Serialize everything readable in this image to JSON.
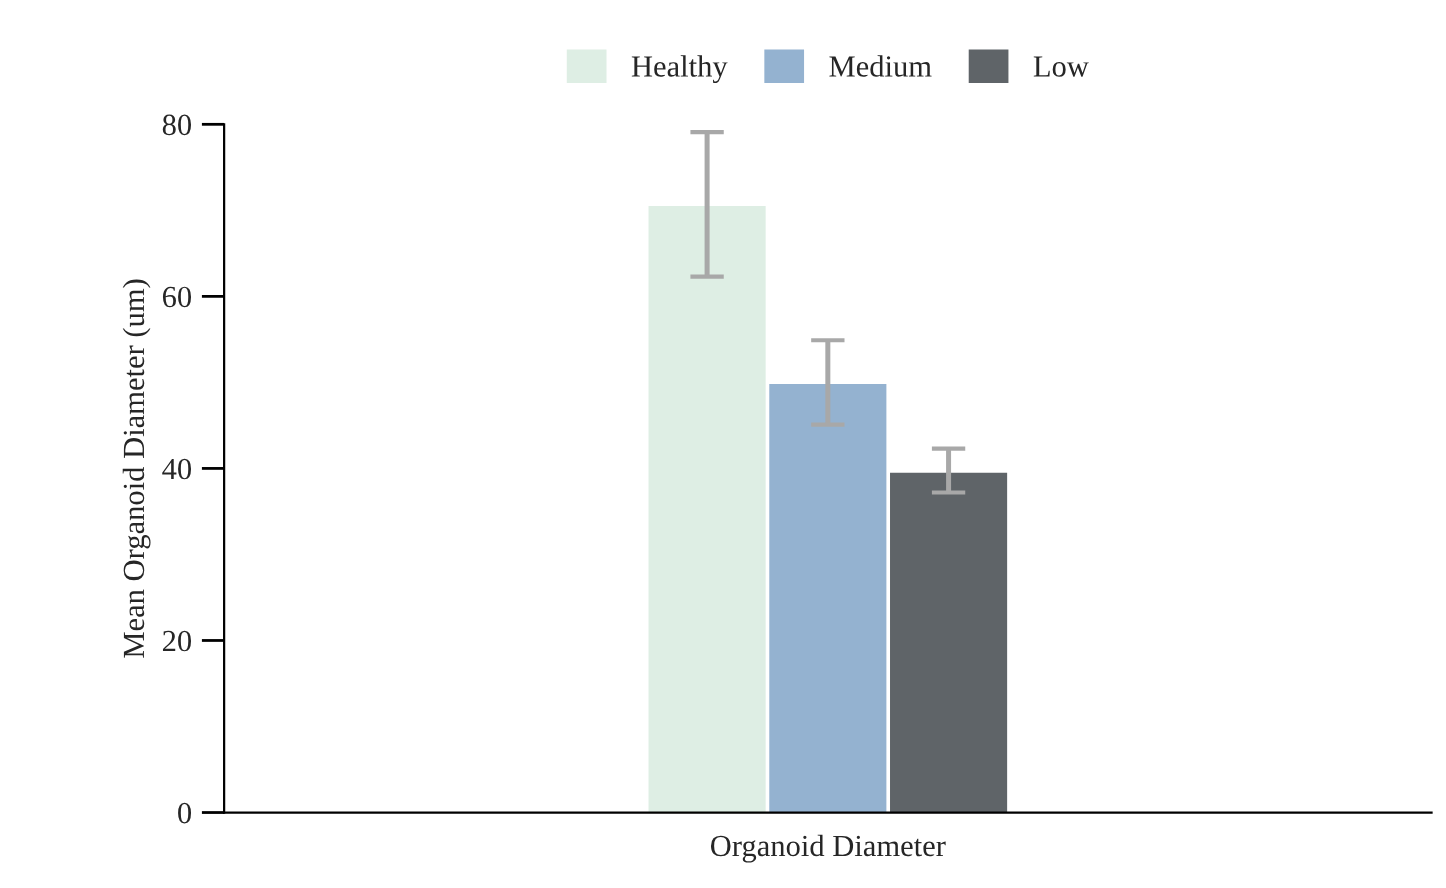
{
  "chart_data": {
    "type": "bar",
    "ylabel": "Mean Organoid Diameter (um)",
    "categories": [
      "Organoid Diameter"
    ],
    "series": [
      {
        "name": "Healthy",
        "color": "#deeee4",
        "values": [
          70.5
        ],
        "errors": [
          [
            62.3,
            79.1
          ]
        ]
      },
      {
        "name": "Medium",
        "color": "#94b2d0",
        "values": [
          49.8
        ],
        "errors": [
          [
            45.1,
            54.9
          ]
        ]
      },
      {
        "name": "Low",
        "color": "#5f6468",
        "values": [
          39.5
        ],
        "errors": [
          [
            37.2,
            42.3
          ]
        ]
      }
    ],
    "ylim": [
      0,
      80
    ],
    "yticks": [
      0,
      20,
      40,
      60,
      80
    ],
    "grid": false,
    "legend": "top"
  }
}
